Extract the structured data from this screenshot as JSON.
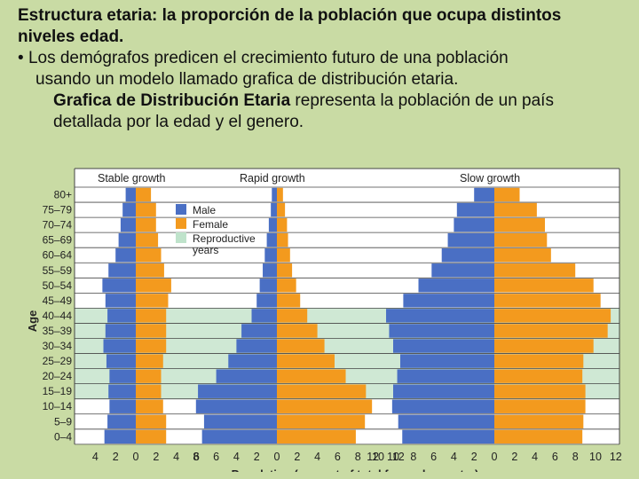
{
  "slide": {
    "line1": "Estructura etaria:  la proporción de la población que ocupa distintos",
    "line2": "niveles edad.",
    "bullet_symbol": "•",
    "line3": "Los demógrafos predicen el crecimiento futuro de una población",
    "line4": "usando un modelo llamado grafica de distribución etaria.",
    "line5_bold": "Grafica de Distribución Etaria",
    "line5_rest": " representa la población de un país",
    "line6": "detallada por la edad y el genero."
  },
  "colors": {
    "male": "#4a6fc4",
    "female": "#f39a1e",
    "reproductive": "#cfe8d4",
    "chart_bg": "#ffffff",
    "grid": "#444444"
  },
  "chart_data": {
    "type": "bar",
    "subtype": "population-pyramid",
    "ylabel": "Age",
    "xlabel": "Population (percent of total for each country)",
    "age_groups": [
      "80+",
      "75–79",
      "70–74",
      "65–69",
      "60–64",
      "55–59",
      "50–54",
      "45–49",
      "40–44",
      "35–39",
      "30–34",
      "25–29",
      "20–24",
      "15–19",
      "10–14",
      "5–9",
      "0–4"
    ],
    "reproductive_groups": [
      "15–19",
      "20–24",
      "25–29",
      "30–34",
      "35–39",
      "40–44"
    ],
    "legend": {
      "male": "Male",
      "female": "Female",
      "reproductive_line1": "Reproductive",
      "reproductive_line2": "years"
    },
    "panels": [
      {
        "title": "Stable growth",
        "xticks_left": [
          "4",
          "2",
          "0"
        ],
        "xticks_right": [
          "0",
          "2",
          "4",
          "6"
        ],
        "male": [
          1.0,
          1.3,
          1.5,
          1.7,
          2.0,
          2.7,
          3.3,
          3.0,
          2.8,
          3.0,
          3.2,
          2.9,
          2.6,
          2.7,
          2.6,
          2.8,
          3.1
        ],
        "female": [
          1.5,
          2.0,
          2.0,
          2.2,
          2.5,
          2.8,
          3.5,
          3.2,
          3.0,
          3.0,
          3.0,
          2.7,
          2.5,
          2.5,
          2.7,
          3.0,
          3.0
        ]
      },
      {
        "title": "Rapid growth",
        "xticks_left": [
          "8",
          "6",
          "4",
          "2",
          "0"
        ],
        "xticks_right": [
          "0",
          "2",
          "4",
          "6",
          "8",
          "10",
          "12"
        ],
        "male": [
          0.5,
          0.6,
          0.8,
          1.0,
          1.2,
          1.4,
          1.7,
          2.0,
          2.5,
          3.5,
          4.0,
          4.8,
          6.0,
          7.8,
          8.0,
          7.2,
          7.4
        ],
        "female": [
          0.6,
          0.8,
          1.0,
          1.1,
          1.3,
          1.5,
          1.9,
          2.3,
          3.0,
          4.0,
          4.7,
          5.7,
          6.8,
          8.8,
          9.4,
          8.7,
          7.8
        ]
      },
      {
        "title": "Slow growth",
        "xticks_left": [
          "12",
          "10",
          "8",
          "6",
          "4",
          "2",
          "0"
        ],
        "xticks_right": [
          "0",
          "2",
          "4",
          "6",
          "8",
          "10",
          "12"
        ],
        "male": [
          2.0,
          3.7,
          4.0,
          4.6,
          5.2,
          6.2,
          7.5,
          9.0,
          10.7,
          10.4,
          10.0,
          9.3,
          9.6,
          10.0,
          10.1,
          9.5,
          9.1
        ],
        "female": [
          2.5,
          4.2,
          5.0,
          5.2,
          5.6,
          8.0,
          9.8,
          10.5,
          11.5,
          11.2,
          9.8,
          8.8,
          8.7,
          9.0,
          9.0,
          8.8,
          8.7
        ]
      }
    ]
  }
}
